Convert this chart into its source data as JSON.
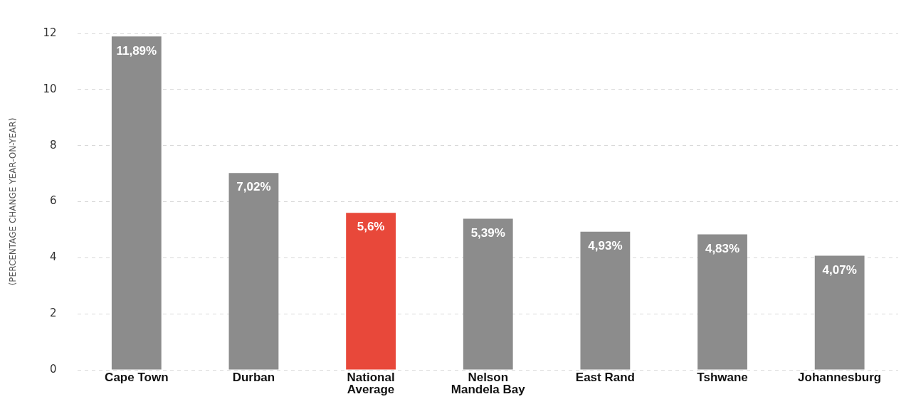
{
  "chart_data": {
    "type": "bar",
    "ylabel": "(PERCENTAGE CHANGE YEAR-ON-YEAR)",
    "categories": [
      "Cape Town",
      "Durban",
      "National Average",
      "Nelson Mandela Bay",
      "East Rand",
      "Tshwane",
      "Johannesburg"
    ],
    "values": [
      11.89,
      7.02,
      5.6,
      5.39,
      4.93,
      4.83,
      4.07
    ],
    "colors": [
      "#8c8c8c",
      "#8c8c8c",
      "#e8483a",
      "#8c8c8c",
      "#8c8c8c",
      "#8c8c8c",
      "#8c8c8c"
    ],
    "value_labels": [
      "11,89%",
      "7,02%",
      "5,6%",
      "5,39%",
      "4,93%",
      "4,83%",
      "4,07%"
    ],
    "ylim": [
      0,
      12
    ],
    "yticks": [
      0,
      2,
      4,
      6,
      8,
      10,
      12
    ],
    "grid": "y"
  }
}
